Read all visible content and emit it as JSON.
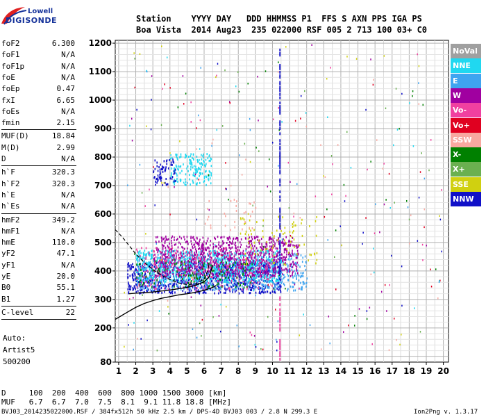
{
  "logo": {
    "line1": "Lowell",
    "line2": "DIGISONDE"
  },
  "header": {
    "row1": "Station    YYYY DAY   DDD HHMMSS P1  FFS S AXN PPS IGA PS",
    "row2": "Boa Vista  2014 Aug23  235 022000 RSF 005 2 713 100 03+ C0"
  },
  "params": [
    {
      "name": "foF2",
      "value": "6.300"
    },
    {
      "name": "foF1",
      "value": "N/A"
    },
    {
      "name": "foF1p",
      "value": "N/A"
    },
    {
      "name": "foE",
      "value": "N/A"
    },
    {
      "name": "foEp",
      "value": "0.47"
    },
    {
      "name": "fxI",
      "value": "6.65"
    },
    {
      "name": "foEs",
      "value": "N/A"
    },
    {
      "name": "fmin",
      "value": "2.15"
    },
    {
      "name": "MUF(D)",
      "value": "18.84"
    },
    {
      "name": "M(D)",
      "value": "2.99"
    },
    {
      "name": "D",
      "value": "N/A"
    },
    {
      "name": "h`F",
      "value": "320.3"
    },
    {
      "name": "h`F2",
      "value": "320.3"
    },
    {
      "name": "h`E",
      "value": "N/A"
    },
    {
      "name": "h`Es",
      "value": "N/A"
    },
    {
      "name": "hmF2",
      "value": "349.2"
    },
    {
      "name": "hmF1",
      "value": "N/A"
    },
    {
      "name": "hmE",
      "value": "110.0"
    },
    {
      "name": "yF2",
      "value": "47.1"
    },
    {
      "name": "yF1",
      "value": "N/A"
    },
    {
      "name": "yE",
      "value": "20.0"
    },
    {
      "name": "B0",
      "value": "55.1"
    },
    {
      "name": "B1",
      "value": "1.27"
    },
    {
      "name": "C-level",
      "value": "22"
    }
  ],
  "auto": {
    "line1": "Auto:",
    "line2": "Artist5",
    "line3": "500200"
  },
  "legend": [
    {
      "label": "NoVal",
      "color": "#a0a0a0"
    },
    {
      "label": "NNE",
      "color": "#20d8f0"
    },
    {
      "label": "E",
      "color": "#3fa4f0"
    },
    {
      "label": "W",
      "color": "#a000a0"
    },
    {
      "label": "Vo-",
      "color": "#f040a0"
    },
    {
      "label": "Vo+",
      "color": "#e00020"
    },
    {
      "label": "SSW",
      "color": "#f8a8a0"
    },
    {
      "label": "X-",
      "color": "#008000"
    },
    {
      "label": "X+",
      "color": "#6ab050"
    },
    {
      "label": "SSE",
      "color": "#d0d010"
    },
    {
      "label": "NNW",
      "color": "#1010c8"
    }
  ],
  "footer": {
    "d_row": "D     100  200  400  600  800 1000 1500 3000 [km]",
    "muf_row": "MUF   6.7  6.7  7.0  7.5  8.1  9.1 11.8 18.8 [MHz]",
    "file_info": "BVJ03_2014235022000.RSF / 384fx512h 50 kHz 2.5 km / DPS-4D BVJ03 003 / 2.8 N 299.3 E",
    "version": "Ion2Png v. 1.3.17"
  },
  "chart_data": {
    "type": "scatter",
    "xlim": [
      0.8,
      20.3
    ],
    "ylim": [
      80,
      1210
    ],
    "x_ticks": [
      1,
      2,
      3,
      4,
      5,
      6,
      7,
      8,
      9,
      10,
      11,
      12,
      13,
      14,
      15,
      16,
      17,
      18,
      19,
      20
    ],
    "y_ticks": [
      80,
      200,
      300,
      400,
      500,
      600,
      700,
      800,
      900,
      1000,
      1100,
      1200
    ],
    "grid": true,
    "legend_position": "right",
    "traces": [
      {
        "name": "profile",
        "style": "solid",
        "points": [
          [
            0.8,
            230
          ],
          [
            1.5,
            255
          ],
          [
            2.0,
            272
          ],
          [
            2.5,
            286
          ],
          [
            3.0,
            296
          ],
          [
            3.5,
            304
          ],
          [
            4.0,
            310
          ],
          [
            4.5,
            316
          ],
          [
            5.0,
            320
          ],
          [
            5.5,
            325
          ],
          [
            6.0,
            332
          ],
          [
            6.5,
            342
          ],
          [
            6.7,
            349
          ]
        ]
      },
      {
        "name": "virtual_height",
        "style": "solid",
        "points": [
          [
            1.6,
            320
          ],
          [
            2.0,
            322
          ],
          [
            3.0,
            326
          ],
          [
            4.0,
            333
          ],
          [
            5.0,
            342
          ],
          [
            5.5,
            350
          ],
          [
            6.0,
            362
          ],
          [
            6.3,
            380
          ],
          [
            6.5,
            420
          ]
        ]
      },
      {
        "name": "model",
        "style": "dashed",
        "points": [
          [
            0.8,
            545
          ],
          [
            1.2,
            520
          ],
          [
            1.6,
            490
          ],
          [
            2.0,
            460
          ],
          [
            2.5,
            430
          ],
          [
            3.0,
            405
          ],
          [
            3.5,
            385
          ],
          [
            4.0,
            370
          ],
          [
            4.5,
            358
          ],
          [
            5.0,
            352
          ],
          [
            5.5,
            354
          ],
          [
            6.0,
            372
          ],
          [
            6.2,
            400
          ],
          [
            6.3,
            430
          ]
        ]
      }
    ],
    "clusters": [
      {
        "source": "NNW",
        "x": [
          1.5,
          10.5
        ],
        "y": [
          320,
          430
        ],
        "n": 900
      },
      {
        "source": "E",
        "x": [
          2.0,
          12.0
        ],
        "y": [
          330,
          460
        ],
        "n": 700
      },
      {
        "source": "NNE",
        "x": [
          2.0,
          10.5
        ],
        "y": [
          360,
          470
        ],
        "n": 700
      },
      {
        "source": "W",
        "x": [
          3.0,
          11.5
        ],
        "y": [
          380,
          520
        ],
        "n": 900
      },
      {
        "source": "Vo-",
        "x": [
          2.0,
          10.0
        ],
        "y": [
          330,
          480
        ],
        "n": 250
      },
      {
        "source": "X-",
        "x": [
          2.0,
          9.0
        ],
        "y": [
          340,
          440
        ],
        "n": 120
      },
      {
        "source": "SSE",
        "x": [
          8.0,
          12.6
        ],
        "y": [
          420,
          590
        ],
        "n": 90
      },
      {
        "source": "NNE",
        "x": [
          4.0,
          6.4
        ],
        "y": [
          700,
          810
        ],
        "n": 160
      },
      {
        "source": "NNW",
        "x": [
          3.0,
          4.3
        ],
        "y": [
          700,
          790
        ],
        "n": 70
      },
      {
        "source": "SSW",
        "x": [
          6.0,
          9.0
        ],
        "y": [
          540,
          650
        ],
        "n": 30
      }
    ]
  }
}
